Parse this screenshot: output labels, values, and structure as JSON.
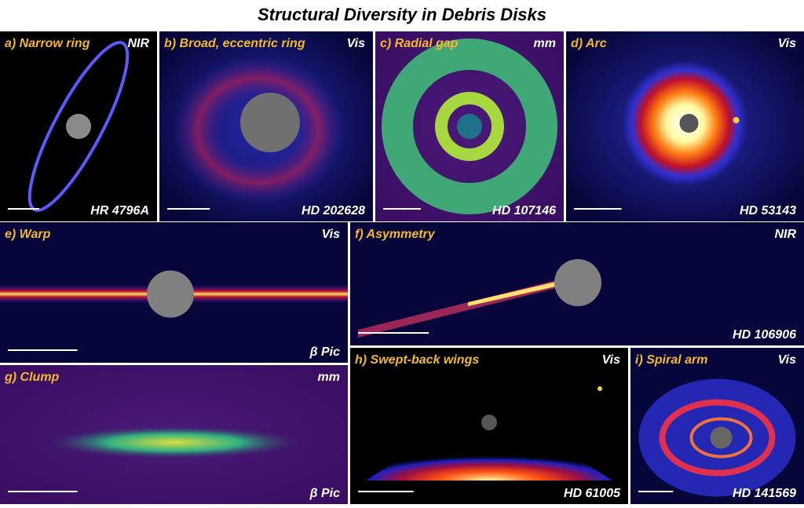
{
  "title": "Structural Diversity in Debris Disks",
  "panels": [
    {
      "label": "a) Narrow ring",
      "band": "NIR",
      "object": "HR 4796A"
    },
    {
      "label": "b) Broad, eccentric ring",
      "band": "Vis",
      "object": "HD 202628"
    },
    {
      "label": "c) Radial gap",
      "band": "mm",
      "object": "HD 107146"
    },
    {
      "label": "d) Arc",
      "band": "Vis",
      "object": "HD 53143"
    },
    {
      "label": "e) Warp",
      "band": "Vis",
      "object": "β Pic"
    },
    {
      "label": "f) Asymmetry",
      "band": "NIR",
      "object": "HD 106906"
    },
    {
      "label": "g) Clump",
      "band": "mm",
      "object": "β Pic"
    },
    {
      "label": "h) Swept-back wings",
      "band": "Vis",
      "object": "HD 61005"
    },
    {
      "label": "i) Spiral arm",
      "band": "Vis",
      "object": "HD 141569"
    }
  ]
}
